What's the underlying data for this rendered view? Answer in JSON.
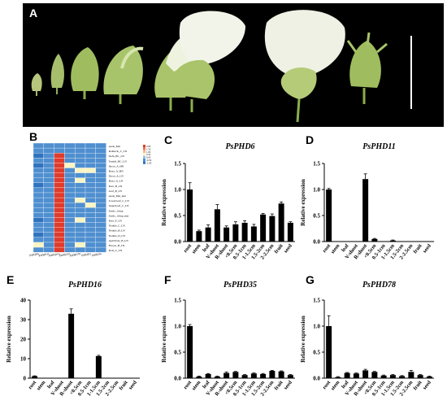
{
  "panels": {
    "a": "A",
    "b": "B",
    "c": "C",
    "d": "D",
    "e": "E",
    "f": "F",
    "g": "G"
  },
  "ylabel": "Relative expression",
  "categories": [
    "root",
    "stem",
    "leaf",
    "V-shoot",
    "R-shoot",
    "<0.5cm",
    "0.5-1cm",
    "1-1.5cm",
    "1.5-2cm",
    "2-2.5cm",
    "fruit",
    "seed"
  ],
  "heatmap": {
    "row_labels": [
      "seeds_Mat",
      "Peduncle_C_LN",
      "Stem_BC_LN",
      "Tendril_BC_LN",
      "Shoot_A_HN",
      "Bract_A_HN",
      "Shoot_A_LN",
      "Bract_A_LN",
      "Root_B_LN",
      "Leaf_B_LN",
      "seeds_Mat_mat",
      "LowerLeaf_C_LN",
      "UpperLeaf_C_LN",
      "Seeds_12dap",
      "Seeds_12dap_mat",
      "Root_F_LN",
      "Nodule_C_LN",
      "Nodule_B_LN",
      "Nodule_D_LN",
      "ApicNode_B_LN",
      "Flower_B_LN",
      "Pods_C_LN"
    ],
    "col_labels": [
      "PsPHD6",
      "PsPHD11",
      "PsPHD16",
      "PsPHD35",
      "PsPHD78",
      "PsPHD2",
      "PsPHD4"
    ],
    "legend_labels": [
      "2.00",
      "1.50",
      "1.00",
      "0.50",
      "0.00",
      "-0.50",
      "-1.00"
    ],
    "values": [
      [
        0,
        0,
        0,
        0,
        0,
        0,
        0
      ],
      [
        0,
        0,
        0,
        0,
        0,
        0,
        0
      ],
      [
        -1,
        0,
        2,
        0,
        0,
        0,
        0
      ],
      [
        0,
        0,
        2,
        0,
        0,
        0,
        0
      ],
      [
        -1,
        0,
        2,
        1,
        0,
        0,
        0
      ],
      [
        0,
        0,
        2,
        0,
        1,
        1,
        0
      ],
      [
        0,
        0,
        2,
        0,
        0,
        0,
        0
      ],
      [
        0,
        0,
        2,
        0,
        1,
        0,
        0
      ],
      [
        -1,
        0,
        2,
        0,
        0,
        0,
        0
      ],
      [
        0,
        0,
        2,
        0,
        0,
        0,
        0
      ],
      [
        0,
        0,
        2,
        0,
        0,
        0,
        0
      ],
      [
        0,
        0,
        2,
        0,
        1,
        0,
        0
      ],
      [
        0,
        0,
        2,
        0,
        0,
        1,
        0
      ],
      [
        0,
        0,
        2,
        0,
        0,
        0,
        0
      ],
      [
        0,
        0,
        2,
        0,
        0,
        0,
        0
      ],
      [
        -1,
        0,
        2,
        0,
        1,
        0,
        0
      ],
      [
        0,
        0,
        2,
        0,
        0,
        0,
        0
      ],
      [
        0,
        0,
        2,
        0,
        0,
        0,
        0
      ],
      [
        -1,
        0,
        2,
        0,
        0,
        0,
        0
      ],
      [
        0,
        0,
        2,
        0,
        0,
        0,
        0
      ],
      [
        1,
        0,
        2,
        0,
        1,
        0,
        0
      ],
      [
        0,
        0,
        2,
        0,
        0,
        0,
        0
      ]
    ]
  },
  "chart_data": [
    {
      "type": "bar",
      "panel": "C",
      "title": "PsPHD6",
      "ylabel": "Relative expression",
      "ylim": [
        0,
        1.5
      ],
      "yticks": [
        "0.0",
        "0.5",
        "1.0",
        "1.5"
      ],
      "values": [
        1.0,
        0.2,
        0.27,
        0.62,
        0.27,
        0.33,
        0.36,
        0.29,
        0.52,
        0.49,
        0.73,
        0.36
      ],
      "errors": [
        0.13,
        0.02,
        0.05,
        0.09,
        0.03,
        0.05,
        0.04,
        0.04,
        0.02,
        0.04,
        0.03,
        0.02
      ]
    },
    {
      "type": "bar",
      "panel": "D",
      "title": "PsPHD11",
      "ylabel": "Relative expression",
      "ylim": [
        0,
        1.5
      ],
      "yticks": [
        "0.0",
        "0.5",
        "1.0",
        "1.5"
      ],
      "values": [
        1.0,
        0.0,
        0.0,
        0.0,
        1.2,
        0.05,
        0.0,
        0.02,
        0.0,
        0.0,
        0.0,
        0.0
      ],
      "errors": [
        0.02,
        0,
        0,
        0,
        0.1,
        0.01,
        0,
        0.01,
        0,
        0,
        0,
        0
      ]
    },
    {
      "type": "bar",
      "panel": "E",
      "title": "PsPHD16",
      "ylabel": "Relative expression",
      "ylim": [
        0,
        40
      ],
      "yticks": [
        "0",
        "10",
        "20",
        "30",
        "40"
      ],
      "values": [
        1.0,
        0.0,
        0.0,
        0.0,
        33.0,
        0.0,
        0.0,
        11.3,
        0.0,
        0.0,
        0.0,
        0.0
      ],
      "errors": [
        0.2,
        0,
        0,
        0,
        2.5,
        0,
        0,
        0.4,
        0,
        0,
        0,
        0
      ]
    },
    {
      "type": "bar",
      "panel": "F",
      "title": "PsPHD35",
      "ylabel": "Relative expression",
      "ylim": [
        0,
        1.5
      ],
      "yticks": [
        "0.0",
        "0.5",
        "1.0",
        "1.5"
      ],
      "values": [
        1.0,
        0.03,
        0.08,
        0.03,
        0.1,
        0.12,
        0.06,
        0.09,
        0.08,
        0.14,
        0.13,
        0.06
      ],
      "errors": [
        0.03,
        0.01,
        0.01,
        0.01,
        0.02,
        0.01,
        0.01,
        0.01,
        0.01,
        0.01,
        0.01,
        0.01
      ]
    },
    {
      "type": "bar",
      "panel": "G",
      "title": "PsPHD78",
      "ylabel": "Relative expression",
      "ylim": [
        0,
        1.5
      ],
      "yticks": [
        "0.0",
        "0.5",
        "1.0",
        "1.5"
      ],
      "values": [
        1.0,
        0.02,
        0.1,
        0.09,
        0.15,
        0.12,
        0.05,
        0.06,
        0.04,
        0.12,
        0.06,
        0.03
      ],
      "errors": [
        0.2,
        0.01,
        0.01,
        0.01,
        0.02,
        0.01,
        0.01,
        0.01,
        0.01,
        0.03,
        0.01,
        0.01
      ]
    }
  ]
}
